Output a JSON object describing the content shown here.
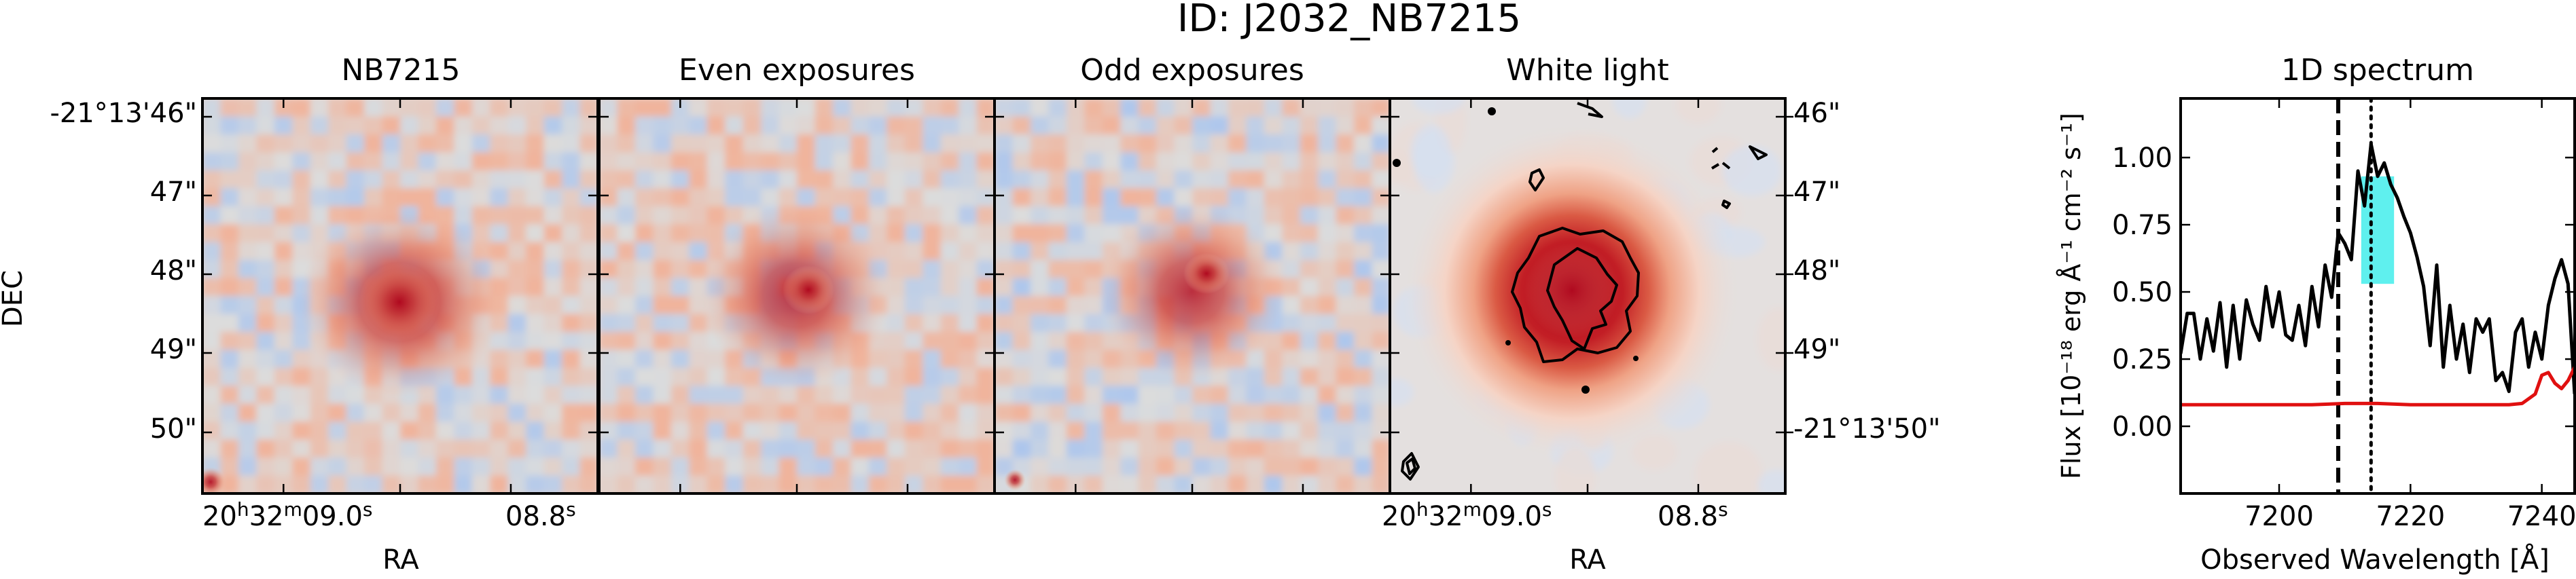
{
  "figure": {
    "title": "ID: J2032_NB7215"
  },
  "panels": {
    "nb": {
      "title": "NB7215"
    },
    "even": {
      "title": "Even exposures"
    },
    "odd": {
      "title": "Odd exposures"
    },
    "white": {
      "title": "White light"
    }
  },
  "image_axes": {
    "ylabel": "DEC",
    "xlabel": "RA",
    "left_yticks": [
      "-21°13'46\"",
      "47\"",
      "48\"",
      "49\"",
      "50\""
    ],
    "right_yticks": [
      "46\"",
      "47\"",
      "48\"",
      "49\"",
      "-21°13'50\""
    ],
    "xtick_major": "20h32m09.0s",
    "xtick_major_parts": {
      "h": "20",
      "hs": "h",
      "m": "32",
      "ms": "m",
      "s": "09.0",
      "ss": "s"
    },
    "xtick_minor": "08.8s",
    "xtick_minor_parts": {
      "v": "08.8",
      "s": "s"
    }
  },
  "colors": {
    "spectrum_line": "#000000",
    "noise_line": "#e01010",
    "highlight": "#5ff0ee",
    "map_low": "#9dbff2",
    "map_mid": "#dcdcdc",
    "map_high": "#b0091f"
  },
  "chart_data": {
    "type": "line",
    "title": "1D spectrum",
    "xlabel": "Observed Wavelength [Å]",
    "ylabel": "Flux [10⁻¹⁸ erg Å⁻¹ cm⁻² s⁻¹]",
    "xlim": [
      7185,
      7245
    ],
    "ylim": [
      -0.25,
      1.22
    ],
    "xticks": [
      7200,
      7220,
      7240
    ],
    "yticks": [
      0.0,
      0.25,
      0.5,
      0.75,
      1.0
    ],
    "ytick_labels": [
      "0.00",
      "0.25",
      "0.50",
      "0.75",
      "1.00"
    ],
    "vline_dashed": 7209,
    "vline_dotted": 7214,
    "highlight_band": {
      "x0": 7212.5,
      "x1": 7217.5,
      "y0": 0.53,
      "y1": 0.93
    },
    "series": [
      {
        "role": "flux",
        "x": [
          7185,
          7186,
          7187,
          7188,
          7189,
          7190,
          7191,
          7192,
          7193,
          7194,
          7195,
          7196,
          7197,
          7198,
          7199,
          7200,
          7201,
          7202,
          7203,
          7204,
          7205,
          7206,
          7207,
          7208,
          7209,
          7210,
          7211,
          7212,
          7213,
          7214,
          7215,
          7216,
          7217,
          7218,
          7219,
          7220,
          7221,
          7222,
          7223,
          7224,
          7225,
          7226,
          7227,
          7228,
          7229,
          7230,
          7231,
          7232,
          7233,
          7234,
          7235,
          7236,
          7237,
          7238,
          7239,
          7240,
          7241,
          7242,
          7243,
          7244,
          7245
        ],
        "y": [
          0.27,
          0.42,
          0.42,
          0.25,
          0.4,
          0.28,
          0.46,
          0.22,
          0.45,
          0.25,
          0.47,
          0.38,
          0.32,
          0.52,
          0.37,
          0.5,
          0.34,
          0.32,
          0.45,
          0.3,
          0.52,
          0.37,
          0.6,
          0.48,
          0.72,
          0.68,
          0.62,
          0.95,
          0.82,
          1.05,
          0.93,
          0.98,
          0.9,
          0.85,
          0.78,
          0.72,
          0.63,
          0.52,
          0.3,
          0.6,
          0.22,
          0.45,
          0.25,
          0.38,
          0.2,
          0.4,
          0.35,
          0.4,
          0.17,
          0.2,
          0.13,
          0.35,
          0.4,
          0.22,
          0.35,
          0.25,
          0.45,
          0.55,
          0.62,
          0.53,
          0.12
        ]
      },
      {
        "role": "noise",
        "x": [
          7185,
          7190,
          7195,
          7200,
          7205,
          7210,
          7215,
          7220,
          7225,
          7230,
          7235,
          7237,
          7239,
          7240,
          7241,
          7242,
          7243,
          7244,
          7245
        ],
        "y": [
          0.08,
          0.08,
          0.08,
          0.08,
          0.08,
          0.085,
          0.085,
          0.08,
          0.08,
          0.08,
          0.08,
          0.085,
          0.12,
          0.19,
          0.2,
          0.16,
          0.14,
          0.17,
          0.22
        ]
      }
    ]
  }
}
